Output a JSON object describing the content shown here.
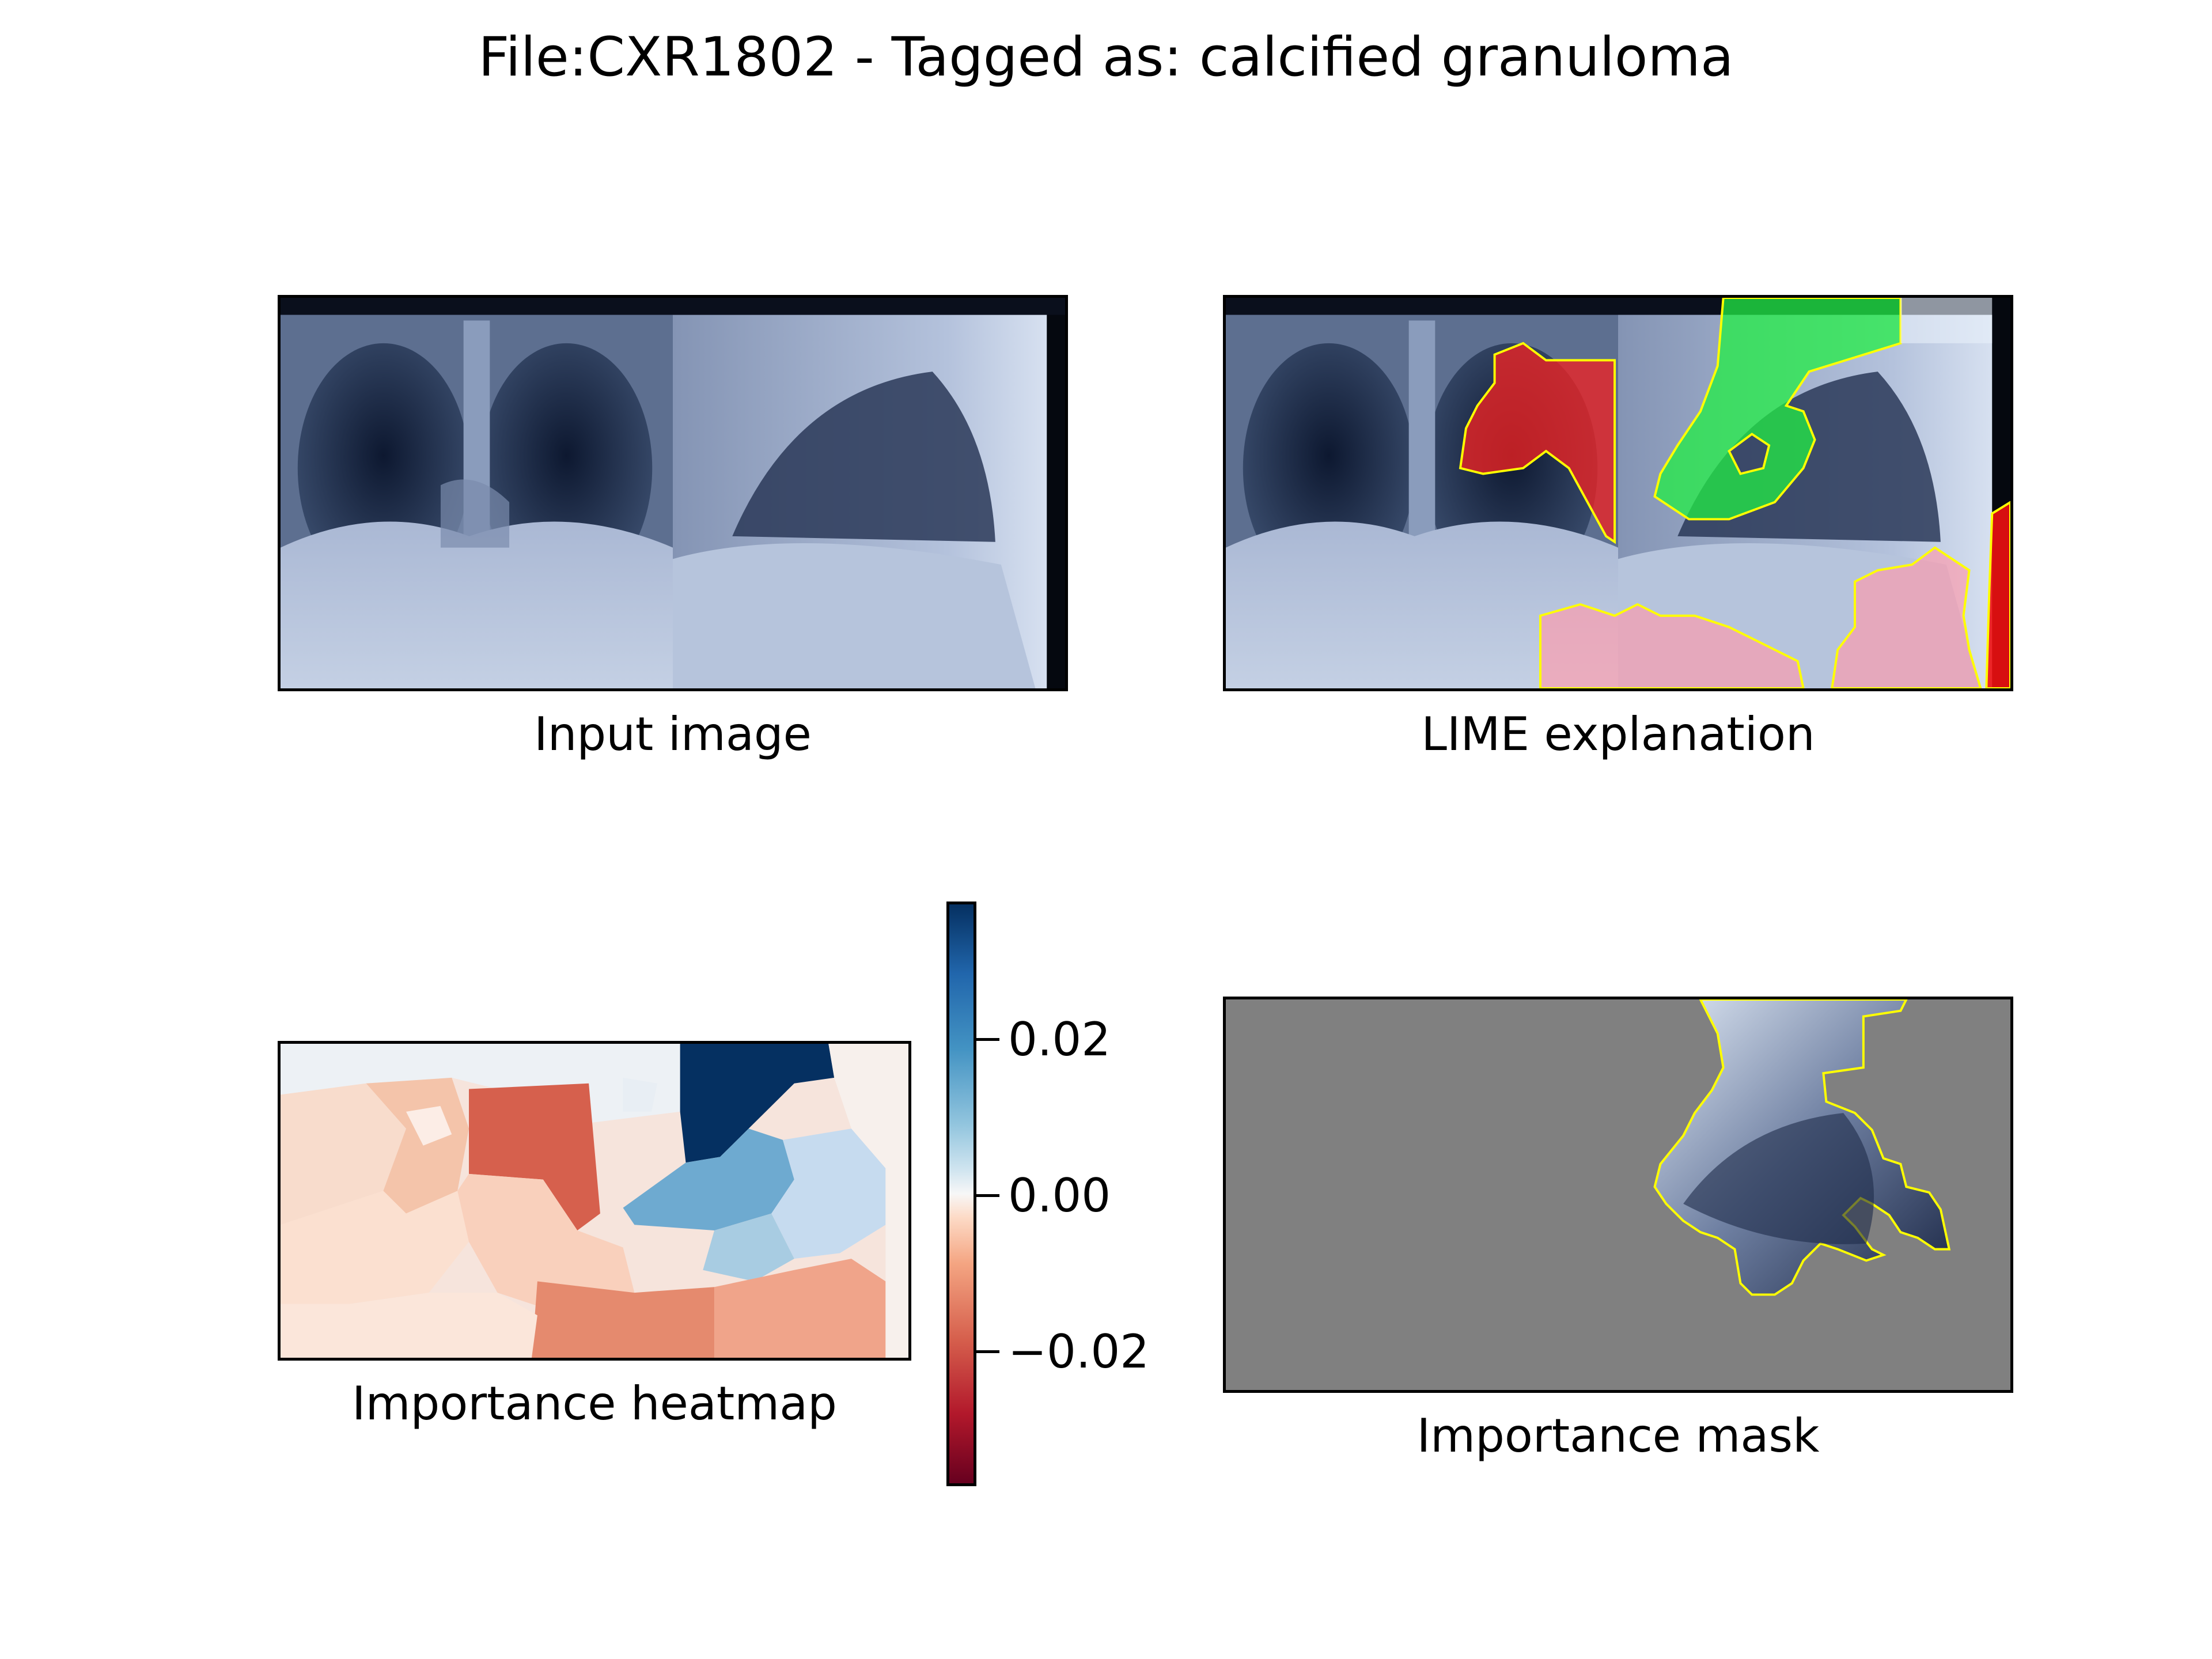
{
  "figure": {
    "title": "File:CXR1802 - Tagged as: calcified granuloma"
  },
  "panels": [
    {
      "caption": "Input image"
    },
    {
      "caption": "LIME explanation"
    },
    {
      "caption": "Importance heatmap"
    },
    {
      "caption": "Importance mask"
    }
  ],
  "colorbar": {
    "colormap": "RdBu",
    "range": [
      -0.037,
      0.037
    ],
    "ticks": [
      "0.02",
      "0.00",
      "−0.02"
    ]
  },
  "colors": {
    "positive_overlay": "#22ee44",
    "negative_overlay": "#ee2222",
    "boundary": "#ffff00",
    "mask_background": "#808080"
  }
}
